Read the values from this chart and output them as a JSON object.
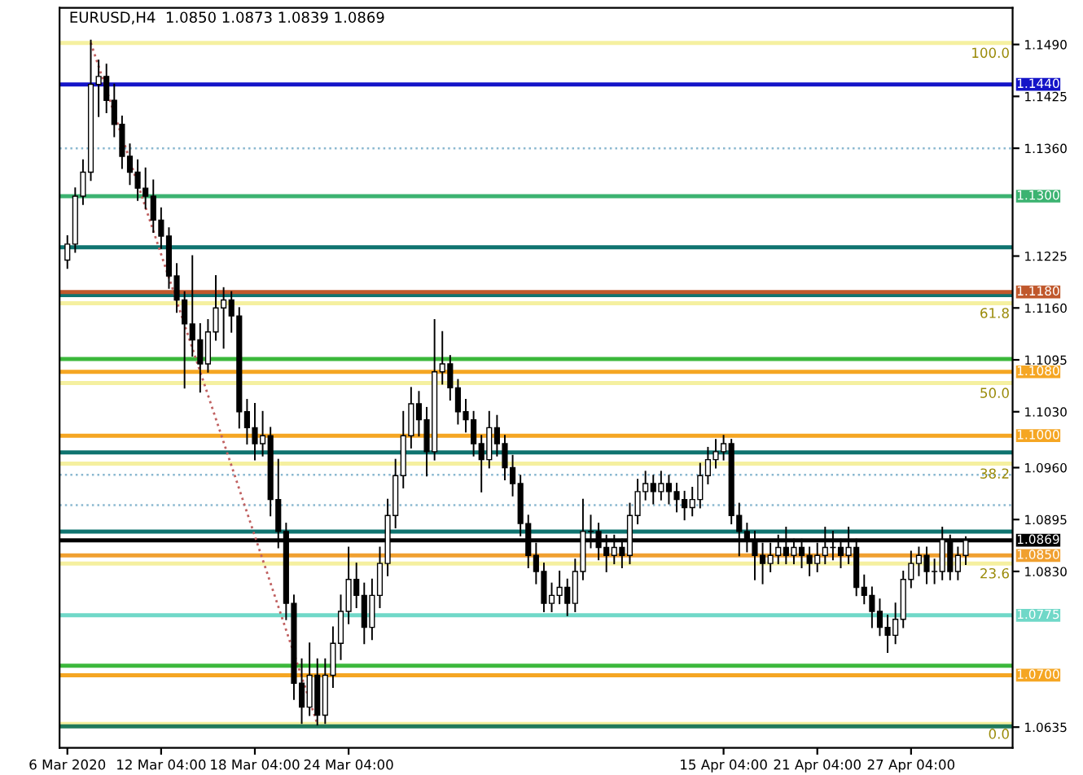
{
  "chart_data": {
    "type": "candlestick",
    "title": "EURUSD,H4  1.0850 1.0873 1.0839 1.0869",
    "categories": [
      "6 Mar 2020",
      null,
      null,
      null,
      null,
      null,
      null,
      null,
      null,
      null,
      null,
      null,
      "12 Mar 04:00",
      null,
      null,
      null,
      null,
      null,
      null,
      null,
      null,
      null,
      null,
      null,
      "18 Mar 04:00",
      null,
      null,
      null,
      null,
      null,
      null,
      null,
      null,
      null,
      null,
      null,
      "24 Mar 04:00",
      null,
      null,
      null,
      null,
      null,
      null,
      null,
      null,
      null,
      null,
      null,
      null,
      null,
      null,
      null,
      null,
      null,
      null,
      null,
      null,
      null,
      null,
      null,
      null,
      null,
      null,
      null,
      null,
      null,
      null,
      null,
      null,
      null,
      null,
      null,
      null,
      null,
      null,
      null,
      null,
      null,
      null,
      null,
      null,
      null,
      null,
      null,
      "15 Apr 04:00",
      null,
      null,
      null,
      null,
      null,
      null,
      null,
      null,
      null,
      null,
      null,
      "21 Apr 04:00",
      null,
      null,
      null,
      null,
      null,
      null,
      null,
      null,
      null,
      null,
      null,
      "27 Apr 04:00",
      null,
      null,
      null,
      null,
      null,
      null,
      null
    ],
    "ohlc": [
      [
        1.122,
        1.125,
        1.121,
        1.124
      ],
      [
        1.124,
        1.131,
        1.123,
        1.13
      ],
      [
        1.13,
        1.1345,
        1.129,
        1.133
      ],
      [
        1.133,
        1.1495,
        1.132,
        1.144
      ],
      [
        1.144,
        1.147,
        1.14,
        1.145
      ],
      [
        1.145,
        1.1465,
        1.1405,
        1.142
      ],
      [
        1.142,
        1.144,
        1.1375,
        1.139
      ],
      [
        1.139,
        1.14,
        1.1335,
        1.135
      ],
      [
        1.135,
        1.1365,
        1.1315,
        1.133
      ],
      [
        1.133,
        1.1345,
        1.1295,
        1.131
      ],
      [
        1.131,
        1.1335,
        1.1285,
        1.13
      ],
      [
        1.13,
        1.132,
        1.1255,
        1.127
      ],
      [
        1.127,
        1.1285,
        1.1235,
        1.125
      ],
      [
        1.125,
        1.126,
        1.1185,
        1.12
      ],
      [
        1.12,
        1.1215,
        1.1155,
        1.117
      ],
      [
        1.117,
        1.118,
        1.106,
        1.114
      ],
      [
        1.114,
        1.1225,
        1.11,
        1.112
      ],
      [
        1.112,
        1.114,
        1.1055,
        1.109
      ],
      [
        1.109,
        1.1145,
        1.108,
        1.113
      ],
      [
        1.113,
        1.12,
        1.112,
        1.116
      ],
      [
        1.116,
        1.1185,
        1.111,
        1.117
      ],
      [
        1.117,
        1.118,
        1.113,
        1.115
      ],
      [
        1.115,
        1.116,
        1.101,
        1.103
      ],
      [
        1.103,
        1.1045,
        1.099,
        1.101
      ],
      [
        1.101,
        1.104,
        1.097,
        1.099
      ],
      [
        1.099,
        1.103,
        1.0975,
        1.1
      ],
      [
        1.1,
        1.101,
        1.09,
        1.092
      ],
      [
        1.092,
        1.097,
        1.086,
        1.088
      ],
      [
        1.088,
        1.089,
        1.077,
        1.079
      ],
      [
        1.079,
        1.08,
        1.067,
        1.069
      ],
      [
        1.069,
        1.072,
        1.064,
        1.066
      ],
      [
        1.066,
        1.074,
        1.065,
        1.07
      ],
      [
        1.07,
        1.072,
        1.0638,
        1.065
      ],
      [
        1.065,
        1.072,
        1.064,
        1.07
      ],
      [
        1.07,
        1.076,
        1.0685,
        1.074
      ],
      [
        1.074,
        1.08,
        1.072,
        1.078
      ],
      [
        1.078,
        1.086,
        1.0765,
        1.082
      ],
      [
        1.082,
        1.084,
        1.0785,
        1.08
      ],
      [
        1.08,
        1.0815,
        1.074,
        1.076
      ],
      [
        1.076,
        1.082,
        1.0745,
        1.08
      ],
      [
        1.08,
        1.086,
        1.0785,
        1.084
      ],
      [
        1.084,
        1.092,
        1.0825,
        1.09
      ],
      [
        1.09,
        1.097,
        1.0885,
        1.095
      ],
      [
        1.095,
        1.103,
        1.0935,
        1.1
      ],
      [
        1.1,
        1.106,
        1.0985,
        1.104
      ],
      [
        1.104,
        1.1055,
        1.1,
        1.102
      ],
      [
        1.102,
        1.1035,
        1.095,
        1.098
      ],
      [
        1.098,
        1.1145,
        1.097,
        1.108
      ],
      [
        1.108,
        1.113,
        1.1065,
        1.109
      ],
      [
        1.109,
        1.11,
        1.1045,
        1.106
      ],
      [
        1.106,
        1.107,
        1.1015,
        1.103
      ],
      [
        1.103,
        1.1045,
        1.1005,
        1.102
      ],
      [
        1.102,
        1.103,
        1.0975,
        1.099
      ],
      [
        1.099,
        1.1,
        1.093,
        1.097
      ],
      [
        1.097,
        1.103,
        1.096,
        1.101
      ],
      [
        1.101,
        1.1025,
        1.0975,
        1.099
      ],
      [
        1.099,
        1.1,
        1.0945,
        1.096
      ],
      [
        1.096,
        1.0975,
        1.0925,
        1.094
      ],
      [
        1.094,
        1.095,
        1.0875,
        1.089
      ],
      [
        1.089,
        1.09,
        1.0835,
        1.085
      ],
      [
        1.085,
        1.0865,
        1.0815,
        1.083
      ],
      [
        1.083,
        1.084,
        1.078,
        1.079
      ],
      [
        1.079,
        1.0815,
        1.078,
        1.08
      ],
      [
        1.08,
        1.083,
        1.079,
        1.081
      ],
      [
        1.081,
        1.082,
        1.0775,
        1.079
      ],
      [
        1.079,
        1.0845,
        1.078,
        1.083
      ],
      [
        1.083,
        1.092,
        1.082,
        1.088
      ],
      [
        1.088,
        1.09,
        1.086,
        1.088
      ],
      [
        1.088,
        1.089,
        1.0845,
        1.086
      ],
      [
        1.086,
        1.0875,
        1.083,
        1.085
      ],
      [
        1.085,
        1.0875,
        1.084,
        1.086
      ],
      [
        1.086,
        1.087,
        1.0835,
        1.085
      ],
      [
        1.085,
        1.0915,
        1.084,
        1.09
      ],
      [
        1.09,
        1.0945,
        1.089,
        1.093
      ],
      [
        1.093,
        1.0955,
        1.092,
        1.094
      ],
      [
        1.094,
        1.095,
        1.0915,
        1.093
      ],
      [
        1.093,
        1.0955,
        1.092,
        1.094
      ],
      [
        1.094,
        1.095,
        1.0915,
        1.093
      ],
      [
        1.093,
        1.094,
        1.0905,
        1.092
      ],
      [
        1.092,
        1.093,
        1.0895,
        1.091
      ],
      [
        1.091,
        1.0935,
        1.09,
        1.092
      ],
      [
        1.092,
        1.0965,
        1.091,
        1.095
      ],
      [
        1.095,
        1.0985,
        1.094,
        1.097
      ],
      [
        1.097,
        1.0995,
        1.096,
        1.098
      ],
      [
        1.098,
        1.1,
        1.097,
        1.099
      ],
      [
        1.099,
        1.0995,
        1.089,
        1.09
      ],
      [
        1.09,
        1.0915,
        1.085,
        1.088
      ],
      [
        1.088,
        1.089,
        1.0855,
        1.087
      ],
      [
        1.087,
        1.088,
        1.082,
        1.085
      ],
      [
        1.085,
        1.0865,
        1.0815,
        1.084
      ],
      [
        1.084,
        1.0865,
        1.083,
        1.085
      ],
      [
        1.085,
        1.0875,
        1.084,
        1.086
      ],
      [
        1.086,
        1.0885,
        1.084,
        1.085
      ],
      [
        1.085,
        1.087,
        1.084,
        1.086
      ],
      [
        1.086,
        1.087,
        1.0835,
        1.085
      ],
      [
        1.085,
        1.086,
        1.0825,
        1.084
      ],
      [
        1.084,
        1.0865,
        1.083,
        1.085
      ],
      [
        1.085,
        1.0885,
        1.084,
        1.086
      ],
      [
        1.086,
        1.088,
        1.0845,
        1.086
      ],
      [
        1.086,
        1.087,
        1.0835,
        1.085
      ],
      [
        1.085,
        1.0885,
        1.084,
        1.086
      ],
      [
        1.086,
        1.087,
        1.08,
        1.081
      ],
      [
        1.081,
        1.0825,
        1.079,
        1.08
      ],
      [
        1.08,
        1.081,
        1.076,
        1.078
      ],
      [
        1.078,
        1.0795,
        1.075,
        1.076
      ],
      [
        1.076,
        1.0775,
        1.0729,
        1.075
      ],
      [
        1.075,
        1.079,
        1.074,
        1.077
      ],
      [
        1.077,
        1.083,
        1.076,
        1.082
      ],
      [
        1.082,
        1.0855,
        1.081,
        1.084
      ],
      [
        1.084,
        1.086,
        1.0825,
        1.085
      ],
      [
        1.085,
        1.086,
        1.0815,
        1.083
      ],
      [
        1.083,
        1.0845,
        1.0815,
        1.083
      ],
      [
        1.083,
        1.0885,
        1.082,
        1.087
      ],
      [
        1.087,
        1.0875,
        1.082,
        1.083
      ],
      [
        1.083,
        1.086,
        1.082,
        1.085
      ],
      [
        1.085,
        1.0873,
        1.0839,
        1.0869
      ]
    ],
    "series": [
      {
        "type": "line",
        "values": [
          null,
          null,
          null,
          1.1492,
          null,
          null,
          null,
          null,
          null,
          null,
          null,
          null,
          null,
          null,
          null,
          null,
          null,
          null,
          null,
          null,
          null,
          null,
          null,
          null,
          null,
          null,
          null,
          null,
          null,
          null,
          null,
          null,
          1.0639,
          null,
          null,
          null,
          null,
          null,
          null,
          null,
          null,
          null,
          null,
          null,
          null,
          null,
          null,
          null,
          null,
          null,
          null,
          null,
          null,
          null,
          null,
          null,
          null,
          null,
          null,
          null,
          null,
          null,
          null,
          null,
          null,
          null,
          null,
          null,
          null,
          null,
          null,
          null,
          null,
          null,
          null,
          null,
          null,
          null,
          null,
          null,
          null,
          null,
          null,
          null,
          null,
          null,
          null,
          null,
          null,
          null,
          null,
          null,
          null,
          null,
          null,
          null,
          null,
          null,
          null,
          null,
          null,
          null,
          null,
          null,
          null,
          null,
          null,
          null,
          null,
          null,
          null,
          null,
          null,
          null,
          null,
          null
        ],
        "color": "#c06060",
        "line_style": "dotted"
      }
    ],
    "ylim": [
      1.0609,
      1.1536
    ],
    "yticks": [
      {
        "value": 1.149,
        "label": "1.1490"
      },
      {
        "value": 1.1425,
        "label": "1.1425"
      },
      {
        "value": 1.136,
        "label": "1.1360"
      },
      {
        "value": 1.1225,
        "label": "1.1225"
      },
      {
        "value": 1.116,
        "label": "1.1160"
      },
      {
        "value": 1.1095,
        "label": "1.1095"
      },
      {
        "value": 1.103,
        "label": "1.1030"
      },
      {
        "value": 1.096,
        "label": "1.0960"
      },
      {
        "value": 1.0895,
        "label": "1.0895"
      },
      {
        "value": 1.083,
        "label": "1.0830"
      },
      {
        "value": 1.0635,
        "label": "1.0635"
      }
    ],
    "ref_lines": [
      {
        "axis": "y",
        "value": 1.1492,
        "color": "#f5f0a0"
      },
      {
        "axis": "y",
        "value": 1.1166,
        "color": "#f5f0a0"
      },
      {
        "axis": "y",
        "value": 1.1066,
        "color": "#f5f0a0"
      },
      {
        "axis": "y",
        "value": 1.0965,
        "color": "#f5f0a0"
      },
      {
        "axis": "y",
        "value": 1.084,
        "color": "#f5f0a0"
      },
      {
        "axis": "y",
        "value": 1.0639,
        "color": "#f5f0a0"
      },
      {
        "axis": "y",
        "value": 1.136,
        "color": "#8ab8d0",
        "line_style": "dotted"
      },
      {
        "axis": "y",
        "value": 1.0951,
        "color": "#8ab8d0",
        "line_style": "dotted"
      },
      {
        "axis": "y",
        "value": 1.0913,
        "color": "#8ab8d0",
        "line_style": "dotted"
      },
      {
        "axis": "y",
        "value": 1.144,
        "label": "1.1440",
        "color": "#1414c8"
      },
      {
        "axis": "y",
        "value": 1.13,
        "label": "1.1300",
        "color": "#3cb371"
      },
      {
        "axis": "y",
        "value": 1.1236,
        "color": "#0f7470"
      },
      {
        "axis": "y",
        "value": 1.1176,
        "color": "#0f7470"
      },
      {
        "axis": "y",
        "value": 1.118,
        "label": "1.1180",
        "color": "#c0582c"
      },
      {
        "axis": "y",
        "value": 1.1096,
        "color": "#3cb83c"
      },
      {
        "axis": "y",
        "value": 1.108,
        "label": "1.1080",
        "color": "#f5a623"
      },
      {
        "axis": "y",
        "value": 1.1,
        "label": "1.1000",
        "color": "#f5a623"
      },
      {
        "axis": "y",
        "value": 1.0979,
        "color": "#0f7470"
      },
      {
        "axis": "y",
        "value": 1.088,
        "color": "#0f7470"
      },
      {
        "axis": "y",
        "value": 1.0869,
        "label": "1.0869",
        "color": "#000000"
      },
      {
        "axis": "y",
        "value": 1.085,
        "label": "1.0850",
        "color": "#f0a030"
      },
      {
        "axis": "y",
        "value": 1.0775,
        "label": "1.0775",
        "color": "#70d8c8"
      },
      {
        "axis": "y",
        "value": 1.0712,
        "color": "#3cb83c"
      },
      {
        "axis": "y",
        "value": 1.07,
        "label": "1.0700",
        "color": "#f5a623"
      },
      {
        "axis": "y",
        "value": 1.0636,
        "color": "#1f7a5a"
      }
    ],
    "annotations": [
      {
        "text": "100.0",
        "y": 1.1492
      },
      {
        "text": "61.8",
        "y": 1.1166
      },
      {
        "text": "50.0",
        "y": 1.1066
      },
      {
        "text": "38.2",
        "y": 1.0965
      },
      {
        "text": "23.6",
        "y": 1.084
      },
      {
        "text": "0.0",
        "y": 1.0639
      }
    ],
    "grid": false
  }
}
